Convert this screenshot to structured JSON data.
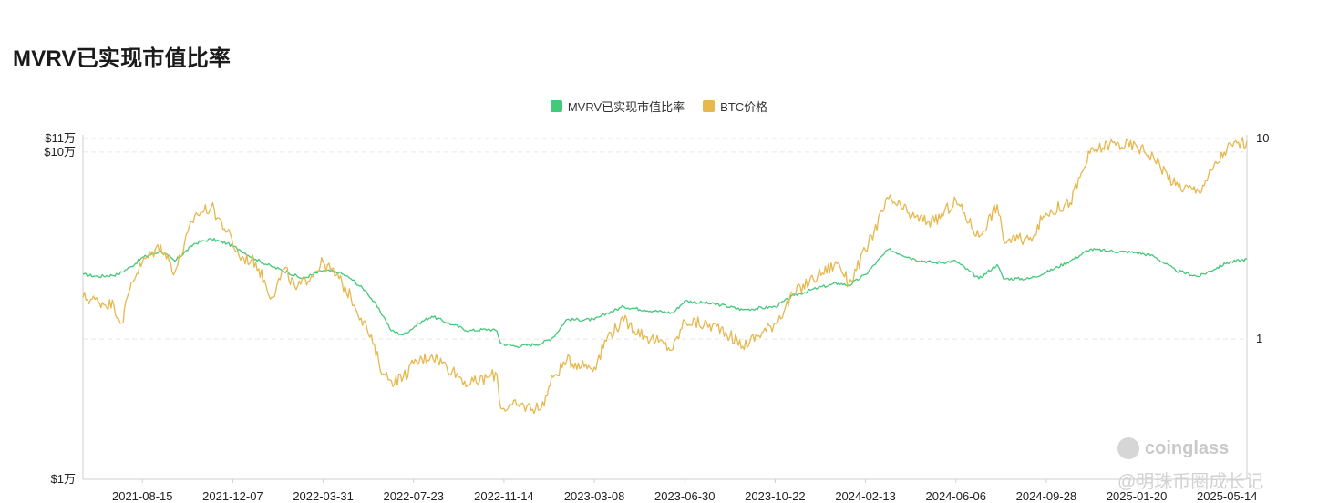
{
  "title": "MVRV已实现市值比率",
  "legend": {
    "mvrv": {
      "label": "MVRV已实现市值比率",
      "color": "#43c97a"
    },
    "btc": {
      "label": "BTC价格",
      "color": "#e6b84e"
    }
  },
  "watermarks": {
    "brand": "coinglass",
    "weibo": "@明珠币圈成长记"
  },
  "chart_data": {
    "type": "line",
    "title": "MVRV已实现市值比率",
    "x_ticks": [
      "2021-08-15",
      "2021-12-07",
      "2022-03-31",
      "2022-07-23",
      "2022-11-14",
      "2023-03-08",
      "2023-06-30",
      "2023-10-22",
      "2024-02-13",
      "2024-06-06",
      "2024-09-28",
      "2025-01-20",
      "2025-05-14"
    ],
    "x_range": [
      "2021-06-01",
      "2025-06-08"
    ],
    "left_axis": {
      "scale": "log",
      "ticks": [
        "$1万",
        "$10万",
        "$11万"
      ],
      "tick_values": [
        10000,
        100000,
        110000
      ],
      "range": [
        10000,
        110000
      ]
    },
    "right_axis": {
      "scale": "log",
      "ticks": [
        "1",
        "10"
      ],
      "tick_values": [
        1,
        10
      ],
      "range": [
        0.2,
        10
      ]
    },
    "grid": true,
    "legend_position": "top-center",
    "series": [
      {
        "name": "MVRV已实现市值比率",
        "axis": "right",
        "color": "#43c97a",
        "points": [
          [
            "2021-06-01",
            2.1
          ],
          [
            "2021-06-20",
            2.05
          ],
          [
            "2021-07-15",
            2.1
          ],
          [
            "2021-08-01",
            2.3
          ],
          [
            "2021-08-15",
            2.55
          ],
          [
            "2021-09-07",
            2.75
          ],
          [
            "2021-09-25",
            2.45
          ],
          [
            "2021-10-20",
            3.0
          ],
          [
            "2021-11-10",
            3.15
          ],
          [
            "2021-11-30",
            3.0
          ],
          [
            "2021-12-15",
            2.8
          ],
          [
            "2022-01-05",
            2.5
          ],
          [
            "2022-01-25",
            2.3
          ],
          [
            "2022-02-15",
            2.15
          ],
          [
            "2022-03-05",
            2.0
          ],
          [
            "2022-03-31",
            2.2
          ],
          [
            "2022-04-20",
            2.15
          ],
          [
            "2022-05-05",
            2.0
          ],
          [
            "2022-05-25",
            1.72
          ],
          [
            "2022-06-15",
            1.3
          ],
          [
            "2022-06-25",
            1.1
          ],
          [
            "2022-07-10",
            1.05
          ],
          [
            "2022-07-30",
            1.2
          ],
          [
            "2022-08-15",
            1.3
          ],
          [
            "2022-09-10",
            1.18
          ],
          [
            "2022-10-01",
            1.1
          ],
          [
            "2022-10-25",
            1.12
          ],
          [
            "2022-11-05",
            1.1
          ],
          [
            "2022-11-10",
            0.95
          ],
          [
            "2022-11-30",
            0.92
          ],
          [
            "2022-12-31",
            0.95
          ],
          [
            "2023-01-15",
            1.02
          ],
          [
            "2023-02-01",
            1.25
          ],
          [
            "2023-03-08",
            1.25
          ],
          [
            "2023-03-25",
            1.35
          ],
          [
            "2023-04-14",
            1.45
          ],
          [
            "2023-05-10",
            1.4
          ],
          [
            "2023-06-15",
            1.35
          ],
          [
            "2023-06-30",
            1.55
          ],
          [
            "2023-08-15",
            1.48
          ],
          [
            "2023-09-11",
            1.4
          ],
          [
            "2023-10-22",
            1.45
          ],
          [
            "2023-11-15",
            1.65
          ],
          [
            "2023-12-15",
            1.8
          ],
          [
            "2024-01-10",
            1.9
          ],
          [
            "2024-01-23",
            1.85
          ],
          [
            "2024-02-13",
            2.1
          ],
          [
            "2024-03-13",
            2.8
          ],
          [
            "2024-04-15",
            2.5
          ],
          [
            "2024-05-10",
            2.4
          ],
          [
            "2024-06-06",
            2.45
          ],
          [
            "2024-07-05",
            2.0
          ],
          [
            "2024-07-28",
            2.35
          ],
          [
            "2024-08-05",
            2.0
          ],
          [
            "2024-09-06",
            2.0
          ],
          [
            "2024-09-28",
            2.15
          ],
          [
            "2024-10-28",
            2.45
          ],
          [
            "2024-11-22",
            2.8
          ],
          [
            "2024-12-17",
            2.75
          ],
          [
            "2025-01-20",
            2.7
          ],
          [
            "2025-02-10",
            2.6
          ],
          [
            "2025-03-10",
            2.2
          ],
          [
            "2025-04-08",
            2.05
          ],
          [
            "2025-05-14",
            2.4
          ],
          [
            "2025-06-08",
            2.5
          ]
        ]
      },
      {
        "name": "BTC价格",
        "axis": "left",
        "color": "#e6b84e",
        "points": [
          [
            "2021-06-01",
            36000
          ],
          [
            "2021-06-20",
            35000
          ],
          [
            "2021-07-10",
            34000
          ],
          [
            "2021-07-20",
            30000
          ],
          [
            "2021-08-01",
            40000
          ],
          [
            "2021-08-15",
            46000
          ],
          [
            "2021-09-07",
            52000
          ],
          [
            "2021-09-25",
            43000
          ],
          [
            "2021-10-20",
            64000
          ],
          [
            "2021-11-10",
            68000
          ],
          [
            "2021-11-30",
            57000
          ],
          [
            "2021-12-15",
            48000
          ],
          [
            "2022-01-05",
            46000
          ],
          [
            "2022-01-25",
            36000
          ],
          [
            "2022-02-10",
            44000
          ],
          [
            "2022-02-25",
            38000
          ],
          [
            "2022-03-31",
            46000
          ],
          [
            "2022-04-20",
            41000
          ],
          [
            "2022-05-05",
            36000
          ],
          [
            "2022-05-25",
            29000
          ],
          [
            "2022-06-15",
            21000
          ],
          [
            "2022-06-25",
            20000
          ],
          [
            "2022-07-10",
            20500
          ],
          [
            "2022-07-23",
            22500
          ],
          [
            "2022-08-15",
            24000
          ],
          [
            "2022-09-10",
            21500
          ],
          [
            "2022-10-01",
            19500
          ],
          [
            "2022-10-25",
            20500
          ],
          [
            "2022-11-05",
            21000
          ],
          [
            "2022-11-10",
            16500
          ],
          [
            "2022-11-30",
            16800
          ],
          [
            "2022-12-31",
            16500
          ],
          [
            "2023-01-15",
            20500
          ],
          [
            "2023-02-01",
            23000
          ],
          [
            "2023-03-08",
            22000
          ],
          [
            "2023-03-25",
            27500
          ],
          [
            "2023-04-14",
            30500
          ],
          [
            "2023-05-10",
            27500
          ],
          [
            "2023-06-15",
            25000
          ],
          [
            "2023-06-30",
            30500
          ],
          [
            "2023-08-15",
            29000
          ],
          [
            "2023-09-11",
            25500
          ],
          [
            "2023-10-22",
            30000
          ],
          [
            "2023-11-15",
            37000
          ],
          [
            "2023-12-15",
            42000
          ],
          [
            "2024-01-10",
            46000
          ],
          [
            "2024-01-23",
            39500
          ],
          [
            "2024-02-13",
            50000
          ],
          [
            "2024-03-13",
            72000
          ],
          [
            "2024-04-15",
            63000
          ],
          [
            "2024-05-10",
            61000
          ],
          [
            "2024-06-06",
            71000
          ],
          [
            "2024-07-05",
            55000
          ],
          [
            "2024-07-28",
            69000
          ],
          [
            "2024-08-05",
            54000
          ],
          [
            "2024-09-06",
            54000
          ],
          [
            "2024-09-28",
            65000
          ],
          [
            "2024-10-28",
            70000
          ],
          [
            "2024-11-22",
            99000
          ],
          [
            "2024-12-17",
            106000
          ],
          [
            "2025-01-20",
            104000
          ],
          [
            "2025-02-10",
            97000
          ],
          [
            "2025-03-10",
            79000
          ],
          [
            "2025-04-08",
            76000
          ],
          [
            "2025-05-14",
            103000
          ],
          [
            "2025-06-08",
            108000
          ]
        ]
      }
    ]
  }
}
